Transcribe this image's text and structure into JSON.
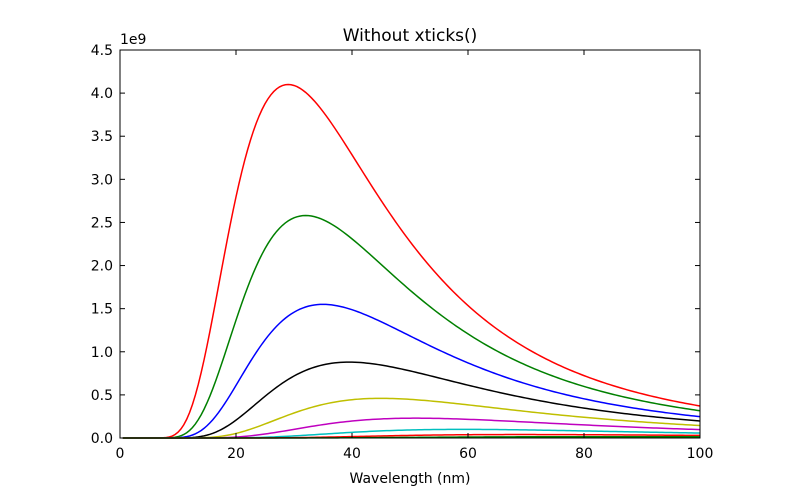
{
  "chart_data": {
    "type": "line",
    "title": "Without xticks()",
    "xlabel": "Wavelength (nm)",
    "ylabel": "",
    "y_offset_label": "1e9",
    "xlim": [
      0,
      100
    ],
    "ylim": [
      0,
      4.5
    ],
    "x_ticks": [
      "0",
      "20",
      "40",
      "60",
      "80",
      "100"
    ],
    "y_ticks": [
      "0.0",
      "0.5",
      "1.0",
      "1.5",
      "2.0",
      "2.5",
      "3.0",
      "3.5",
      "4.0",
      "4.5"
    ],
    "grid": false,
    "legend": "none",
    "series": [
      {
        "color": "#ff0000",
        "peak_x": 29,
        "peak_y": 4.1
      },
      {
        "color": "#008000",
        "peak_x": 32,
        "peak_y": 2.58
      },
      {
        "color": "#0000ff",
        "peak_x": 35,
        "peak_y": 1.55
      },
      {
        "color": "#000000",
        "peak_x": 39.5,
        "peak_y": 0.88
      },
      {
        "color": "#bfbf00",
        "peak_x": 45,
        "peak_y": 0.46
      },
      {
        "color": "#bf00bf",
        "peak_x": 51,
        "peak_y": 0.23
      },
      {
        "color": "#00bfbf",
        "peak_x": 59,
        "peak_y": 0.1
      },
      {
        "color": "#ff0000",
        "peak_x": 69,
        "peak_y": 0.04
      },
      {
        "color": "#008000",
        "peak_x": 82,
        "peak_y": 0.015
      }
    ]
  }
}
